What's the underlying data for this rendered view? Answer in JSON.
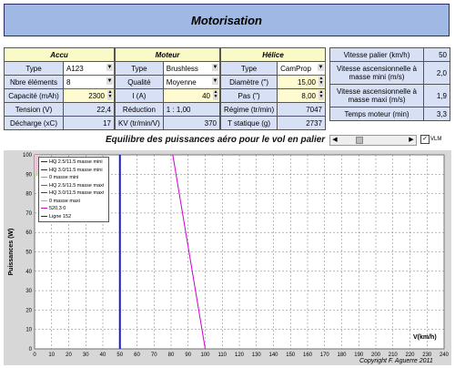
{
  "title": "Motorisation",
  "accu": {
    "header": "Accu",
    "rows": [
      {
        "label": "Type",
        "value": "A123"
      },
      {
        "label": "Nbre éléments",
        "value": "8"
      },
      {
        "label": "Capacité (mAh)",
        "value": "2300"
      },
      {
        "label": "Tension (V)",
        "value": "22,4"
      },
      {
        "label": "Décharge (xC)",
        "value": "17"
      }
    ]
  },
  "moteur": {
    "header": "Moteur",
    "rows": [
      {
        "label": "Type",
        "value": "Brushless"
      },
      {
        "label": "Qualité",
        "value": "Moyenne"
      },
      {
        "label": "I (A)",
        "value": "40"
      },
      {
        "label": "Réduction",
        "value": "1 : 1,00"
      },
      {
        "label": "KV (tr/min/V)",
        "value": "370"
      }
    ]
  },
  "helice": {
    "header": "Hélice",
    "rows": [
      {
        "label": "Type",
        "value": "CamProp"
      },
      {
        "label": "Diamètre (\")",
        "value": "15,00"
      },
      {
        "label": "Pas (\")",
        "value": "8,00"
      },
      {
        "label": "Régime (tr/min)",
        "value": "7047"
      },
      {
        "label": "T statique (g)",
        "value": "2737"
      }
    ]
  },
  "results": [
    {
      "label": "Vitesse palier (km/h)",
      "value": "50"
    },
    {
      "label": "Vitesse ascensionnelle à masse mini (m/s)",
      "value": "2,0"
    },
    {
      "label": "Vitesse ascensionnelle à masse maxi (m/s)",
      "value": "1,9"
    },
    {
      "label": "Temps moteur (min)",
      "value": "3,3"
    }
  ],
  "chart_title": "Equilibre des puissances aéro pour le vol en palier",
  "checkbox_label": "VLM",
  "copyright": "Copyright F. Aguerre 2011",
  "chart_data": {
    "type": "line",
    "xlabel": "V(km/h)",
    "ylabel": "Puissances (W)",
    "xlim": [
      0,
      240
    ],
    "ylim": [
      0,
      100
    ],
    "xticks": [
      0,
      10,
      20,
      30,
      40,
      50,
      60,
      70,
      80,
      90,
      100,
      110,
      120,
      130,
      140,
      150,
      160,
      170,
      180,
      190,
      200,
      210,
      220,
      230,
      240
    ],
    "yticks": [
      0,
      10,
      20,
      30,
      40,
      50,
      60,
      70,
      80,
      90,
      100
    ],
    "legend": [
      "HQ 2.5/11.5 masse mini",
      "HQ 3.0/11.5 masse mini",
      "0 masse mini",
      "HQ 2.5/11.5 masse maxi",
      "HQ 3.0/11.5 masse maxi",
      "0 masse maxi",
      "520,3 0",
      "Ligne 152"
    ],
    "series": [
      {
        "name": "Ligne 152",
        "color": "#1a1acc",
        "x": [
          50,
          50
        ],
        "y": [
          0,
          100
        ]
      },
      {
        "name": "520,3 0",
        "color": "#cc00cc",
        "x": [
          81,
          100
        ],
        "y": [
          100,
          0
        ]
      }
    ]
  }
}
